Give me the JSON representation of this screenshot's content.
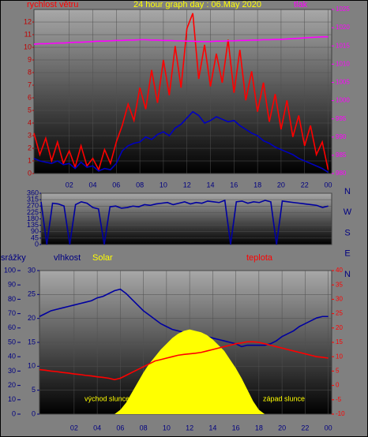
{
  "chart_data": [
    {
      "type": "line",
      "title": "24 hour graph day : 06.May 2020",
      "ylabel": "rychlost větru",
      "y2label": "tlak",
      "x": [
        -1,
        -0.5,
        0,
        0.5,
        1,
        1.5,
        2,
        2.5,
        3,
        3.5,
        4,
        4.5,
        5,
        5.5,
        6,
        6.5,
        7,
        7.5,
        8,
        8.5,
        9,
        9.5,
        10,
        10.5,
        11,
        11.5,
        12,
        12.5,
        13,
        13.5,
        14,
        14.5,
        15,
        15.5,
        16,
        16.5,
        17,
        17.5,
        18,
        18.5,
        19,
        19.5,
        20,
        20.5,
        21,
        21.5,
        22,
        22.5,
        23,
        23.5,
        24
      ],
      "xlim": [
        -1,
        24.3
      ],
      "xticks": [
        {
          "value": 2,
          "label": "02"
        },
        {
          "value": 4,
          "label": "04"
        },
        {
          "value": 6,
          "label": "06"
        },
        {
          "value": 8,
          "label": "08"
        },
        10,
        12,
        14,
        16,
        18,
        20,
        22,
        {
          "value": 24,
          "label": "00"
        }
      ],
      "ylim": [
        0,
        13
      ],
      "yticks": [
        0,
        1,
        2,
        3,
        4,
        5,
        6,
        7,
        8,
        9,
        10,
        11,
        12
      ],
      "y2lim": [
        980,
        1025
      ],
      "y2ticks": [
        980,
        985,
        990,
        995,
        1000,
        1005,
        1010,
        1015,
        1020,
        1025
      ],
      "series": [
        {
          "color": "#ff0000",
          "values": [
            3.2,
            1.5,
            2.8,
            1.0,
            2.5,
            0.8,
            1.8,
            0.5,
            2.2,
            0.6,
            1.2,
            0.3,
            1.9,
            0.8,
            2.5,
            3.8,
            5.5,
            4.2,
            6.8,
            5.1,
            8.2,
            5.6,
            9.0,
            6.2,
            10.1,
            6.8,
            11.5,
            12.7,
            7.5,
            10.2,
            6.9,
            9.5,
            7.2,
            10.6,
            6.4,
            9.8,
            5.8,
            8.1,
            4.9,
            7.2,
            4.1,
            6.3,
            3.5,
            5.8,
            2.9,
            4.6,
            2.2,
            3.8,
            1.5,
            2.5,
            0.3
          ]
        },
        {
          "color": "#0000c0",
          "values": [
            1.2,
            1.0,
            0.9,
            0.8,
            1.0,
            0.7,
            0.8,
            0.4,
            0.9,
            0.5,
            0.6,
            0.2,
            0.4,
            0.3,
            0.8,
            1.8,
            2.2,
            2.4,
            2.5,
            2.9,
            2.7,
            3.1,
            3.3,
            3.0,
            3.6,
            3.9,
            4.4,
            4.9,
            4.6,
            4.0,
            4.2,
            4.5,
            4.3,
            4.1,
            4.2,
            3.8,
            3.5,
            3.2,
            3.0,
            2.6,
            2.4,
            2.1,
            1.9,
            1.7,
            1.5,
            1.2,
            1.0,
            0.8,
            0.6,
            0.4,
            0.1
          ]
        },
        {
          "color": "#ff00ff",
          "axis": "y2",
          "values": [
            1015.5,
            1015.6,
            1015.6,
            1015.7,
            1015.8,
            1015.8,
            1015.9,
            1016.0,
            1016.0,
            1016.1,
            1016.2,
            1016.3,
            1016.3,
            1016.4,
            1016.5,
            1016.5,
            1016.6,
            1016.6,
            1016.7,
            1016.7,
            1016.6,
            1016.6,
            1016.5,
            1016.5,
            1016.4,
            1016.4,
            1016.3,
            1016.3,
            1016.2,
            1016.2,
            1016.2,
            1016.3,
            1016.3,
            1016.4,
            1016.4,
            1016.5,
            1016.5,
            1016.6,
            1016.6,
            1016.7,
            1016.7,
            1016.8,
            1016.8,
            1016.9,
            1017.0,
            1017.1,
            1017.2,
            1017.3,
            1017.4,
            1017.5,
            1017.5
          ]
        }
      ]
    },
    {
      "type": "line",
      "direction_labels": [
        "N",
        "W",
        "S",
        "E",
        "N"
      ],
      "x": [
        -1,
        -0.5,
        0,
        0.5,
        1,
        1.5,
        2,
        2.5,
        3,
        3.5,
        4,
        4.5,
        5,
        5.5,
        6,
        6.5,
        7,
        7.5,
        8,
        8.5,
        9,
        9.5,
        10,
        10.5,
        11,
        11.5,
        12,
        12.5,
        13,
        13.5,
        14,
        14.5,
        15,
        15.5,
        16,
        16.5,
        17,
        17.5,
        18,
        18.5,
        19,
        19.5,
        20,
        20.5,
        21,
        21.5,
        22,
        22.5,
        23,
        23.5,
        24
      ],
      "xlim": [
        -1,
        24.3
      ],
      "ylim": [
        0,
        360
      ],
      "yticks": [
        0,
        45,
        90,
        135,
        180,
        225,
        270,
        315,
        360
      ],
      "series": [
        {
          "color": "#0000a0",
          "values": [
            300,
            0,
            290,
            285,
            270,
            0,
            280,
            300,
            290,
            260,
            250,
            0,
            265,
            270,
            255,
            260,
            270,
            265,
            280,
            275,
            285,
            290,
            295,
            280,
            290,
            300,
            285,
            295,
            290,
            305,
            300,
            295,
            310,
            0,
            300,
            305,
            290,
            300,
            295,
            310,
            300,
            0,
            305,
            300,
            295,
            290,
            285,
            280,
            275,
            260,
            270
          ]
        }
      ]
    },
    {
      "type": "line",
      "ylabel": "srážky",
      "annotations": [
        "východ slunce",
        "západ slunce"
      ],
      "x": [
        -1,
        -0.5,
        0,
        0.5,
        1,
        1.5,
        2,
        2.5,
        3,
        3.5,
        4,
        4.5,
        5,
        5.5,
        6,
        6.5,
        7,
        7.5,
        8,
        8.5,
        9,
        9.5,
        10,
        10.5,
        11,
        11.5,
        12,
        12.5,
        13,
        13.5,
        14,
        14.5,
        15,
        15.5,
        16,
        16.5,
        17,
        17.5,
        18,
        18.5,
        19,
        19.5,
        20,
        20.5,
        21,
        21.5,
        22,
        22.5,
        23,
        23.5,
        24
      ],
      "xlim": [
        -1,
        24.3
      ],
      "xticks": [
        {
          "value": 2,
          "label": "02"
        },
        {
          "value": 4,
          "label": "04"
        },
        {
          "value": 6,
          "label": "06"
        },
        {
          "value": 8,
          "label": "08"
        },
        10,
        12,
        14,
        16,
        18,
        20,
        22,
        {
          "value": 24,
          "label": "00"
        }
      ],
      "ylim": [
        0,
        100
      ],
      "yticks": [
        0,
        10,
        20,
        30,
        40,
        50,
        60,
        70,
        80,
        90,
        100
      ],
      "y3lim": [
        0,
        30
      ],
      "y3ticks": [
        0,
        5,
        10,
        15,
        20,
        25,
        30
      ],
      "y2lim": [
        -10,
        40
      ],
      "y2ticks": [
        -10,
        -5,
        0,
        5,
        10,
        15,
        20,
        25,
        30,
        35,
        40
      ],
      "series": [
        {
          "name": "vlhkost",
          "color": "#0000a0",
          "values": [
            68,
            70,
            72,
            73,
            74,
            75,
            76,
            77,
            78,
            79,
            81,
            82,
            84,
            86,
            87,
            84,
            80,
            76,
            72,
            69,
            66,
            63,
            61,
            59,
            58,
            57,
            56,
            56,
            55,
            54,
            53,
            52,
            51,
            50,
            49,
            47,
            48,
            48,
            48,
            48,
            49,
            51,
            54,
            56,
            58,
            61,
            63,
            65,
            67,
            68,
            68
          ]
        },
        {
          "name": "Solar",
          "color": "#ffff00",
          "style": "area",
          "values": [
            0,
            0,
            0,
            0,
            0,
            0,
            0,
            0,
            0,
            0,
            0,
            0,
            0,
            0,
            3,
            8,
            15,
            22,
            29,
            35,
            40,
            45,
            49,
            53,
            56,
            58,
            59,
            58,
            57,
            55,
            52,
            48,
            44,
            38,
            32,
            25,
            17,
            9,
            3,
            0,
            0,
            0,
            0,
            0,
            0,
            0,
            0,
            0,
            0,
            0,
            0
          ]
        },
        {
          "name": "teplota",
          "color": "#ff0000",
          "axis": "y2",
          "values": [
            5.5,
            5.3,
            5,
            4.8,
            4.5,
            4.3,
            4,
            3.8,
            3.5,
            3.3,
            3,
            2.8,
            2.5,
            2,
            2.5,
            3.5,
            4.5,
            5.5,
            6.5,
            7.5,
            8.5,
            9,
            9.5,
            10,
            10.5,
            10.8,
            11,
            11.2,
            11.5,
            12,
            12.5,
            13,
            13.5,
            14,
            14.5,
            14.8,
            15.2,
            15.2,
            15,
            14.5,
            14,
            13.5,
            13,
            12.5,
            12,
            11.5,
            11,
            10.5,
            10,
            9.8,
            9.5
          ]
        }
      ]
    }
  ]
}
